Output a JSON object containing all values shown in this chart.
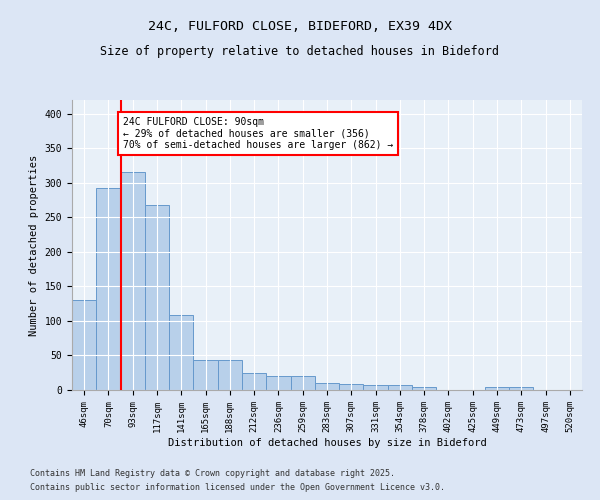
{
  "title1": "24C, FULFORD CLOSE, BIDEFORD, EX39 4DX",
  "title2": "Size of property relative to detached houses in Bideford",
  "xlabel": "Distribution of detached houses by size in Bideford",
  "ylabel": "Number of detached properties",
  "categories": [
    "46sqm",
    "70sqm",
    "93sqm",
    "117sqm",
    "141sqm",
    "165sqm",
    "188sqm",
    "212sqm",
    "236sqm",
    "259sqm",
    "283sqm",
    "307sqm",
    "331sqm",
    "354sqm",
    "378sqm",
    "402sqm",
    "425sqm",
    "449sqm",
    "473sqm",
    "497sqm",
    "520sqm"
  ],
  "values": [
    130,
    293,
    316,
    268,
    108,
    43,
    43,
    25,
    20,
    20,
    10,
    9,
    7,
    7,
    4,
    0,
    0,
    4,
    4,
    0,
    0
  ],
  "bar_color": "#b8d0ea",
  "bar_edge_color": "#6699cc",
  "annotation_text": "24C FULFORD CLOSE: 90sqm\n← 29% of detached houses are smaller (356)\n70% of semi-detached houses are larger (862) →",
  "annotation_box_color": "white",
  "annotation_box_edge_color": "red",
  "ylim": [
    0,
    420
  ],
  "yticks": [
    0,
    50,
    100,
    150,
    200,
    250,
    300,
    350,
    400
  ],
  "footer1": "Contains HM Land Registry data © Crown copyright and database right 2025.",
  "footer2": "Contains public sector information licensed under the Open Government Licence v3.0.",
  "bg_color": "#dce6f5",
  "plot_bg_color": "#e8f0f8",
  "grid_color": "#ffffff"
}
